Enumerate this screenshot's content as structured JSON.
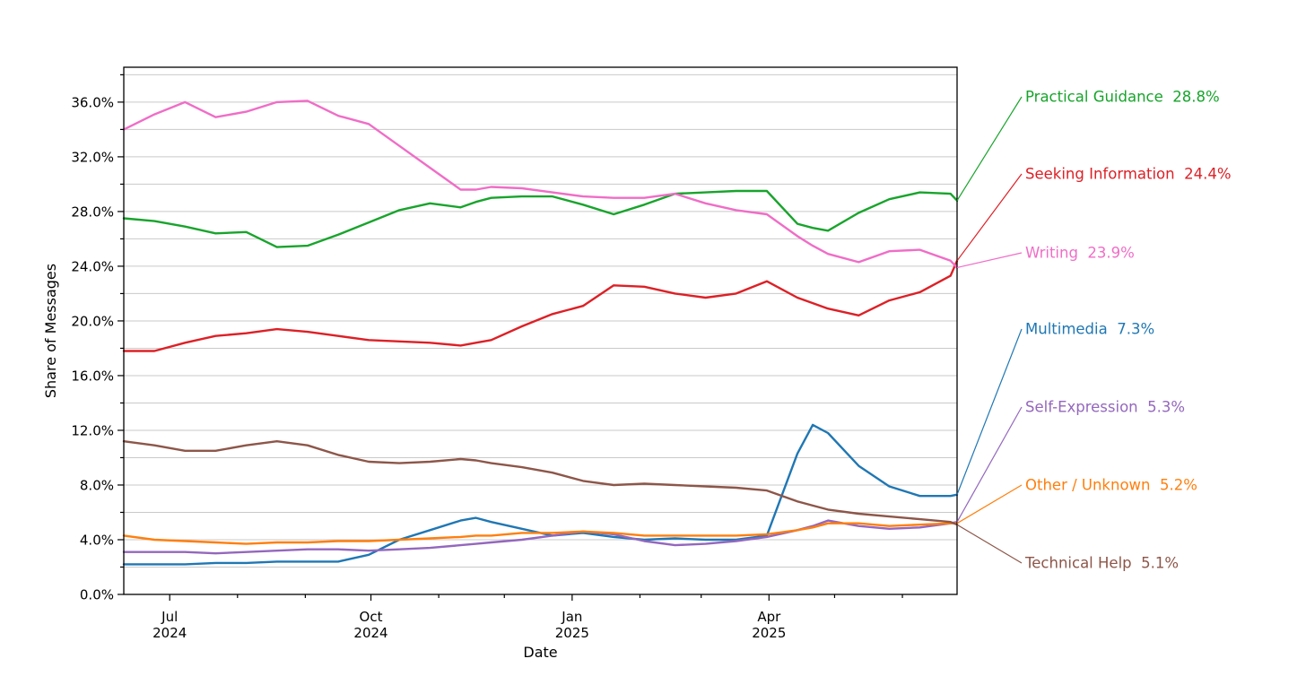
{
  "figure": {
    "background": "#ffffff",
    "plot_border_color": "#000000",
    "grid_color": "#c9c9c9"
  },
  "chart_data": {
    "type": "line",
    "title": "",
    "xlabel": "Date",
    "ylabel": "Share of Messages",
    "legend_position": "right-edge annotations with leader lines",
    "grid": "horizontal, every 2%",
    "ylim": [
      0,
      38.55
    ],
    "y_major_ticks": [
      0,
      4,
      8,
      12,
      16,
      20,
      24,
      28,
      32,
      36
    ],
    "y_major_tick_labels": [
      "0.0%",
      "4.0%",
      "8.0%",
      "12.0%",
      "16.0%",
      "20.0%",
      "24.0%",
      "28.0%",
      "32.0%",
      "36.0%"
    ],
    "y_gridline_step_pct": 2,
    "x_range": [
      "2024-06-10",
      "2025-06-26"
    ],
    "x_major_ticks": [
      {
        "date": "2024-07-01",
        "line1": "Jul",
        "line2": "2024"
      },
      {
        "date": "2024-10-01",
        "line1": "Oct",
        "line2": "2024"
      },
      {
        "date": "2025-01-01",
        "line1": "Jan",
        "line2": "2025"
      },
      {
        "date": "2025-04-01",
        "line1": "Apr",
        "line2": "2025"
      }
    ],
    "x_minor_ticks": [
      "2024-08-01",
      "2024-09-01",
      "2024-11-01",
      "2024-12-01",
      "2025-02-01",
      "2025-03-01",
      "2025-05-01",
      "2025-06-01"
    ],
    "dates": [
      "2024-06-10",
      "2024-06-24",
      "2024-07-08",
      "2024-07-22",
      "2024-08-05",
      "2024-08-19",
      "2024-09-02",
      "2024-09-16",
      "2024-09-30",
      "2024-10-14",
      "2024-10-28",
      "2024-11-11",
      "2024-11-18",
      "2024-11-25",
      "2024-12-09",
      "2024-12-23",
      "2025-01-06",
      "2025-01-20",
      "2025-02-03",
      "2025-02-17",
      "2025-03-03",
      "2025-03-17",
      "2025-03-31",
      "2025-04-14",
      "2025-04-21",
      "2025-04-28",
      "2025-05-12",
      "2025-05-26",
      "2025-06-09",
      "2025-06-23",
      "2025-06-26"
    ],
    "series": [
      {
        "name": "Practical Guidance",
        "final_label": "28.8%",
        "color": "#18a42c",
        "label_y": 108,
        "values": [
          27.5,
          27.3,
          26.9,
          26.4,
          26.5,
          25.4,
          25.5,
          26.3,
          27.2,
          28.1,
          28.6,
          28.3,
          28.7,
          29.0,
          29.1,
          29.1,
          28.5,
          27.8,
          28.5,
          29.3,
          29.4,
          29.5,
          29.5,
          27.1,
          26.8,
          26.6,
          27.9,
          28.9,
          29.4,
          29.3,
          28.8
        ]
      },
      {
        "name": "Seeking Information",
        "final_label": "24.4%",
        "color": "#dd2026",
        "label_y": 194,
        "values": [
          17.8,
          17.8,
          18.4,
          18.9,
          19.1,
          19.4,
          19.2,
          18.9,
          18.6,
          18.5,
          18.4,
          18.2,
          18.4,
          18.6,
          19.6,
          20.5,
          21.1,
          22.6,
          22.5,
          22.0,
          21.7,
          22.0,
          22.9,
          21.7,
          21.3,
          20.9,
          20.4,
          21.5,
          22.1,
          23.3,
          24.4
        ]
      },
      {
        "name": "Writing",
        "final_label": "23.9%",
        "color": "#f06dc7",
        "label_y": 282,
        "values": [
          34.0,
          35.1,
          36.0,
          34.9,
          35.3,
          36.0,
          36.1,
          35.0,
          34.4,
          32.8,
          31.2,
          29.6,
          29.6,
          29.8,
          29.7,
          29.4,
          29.1,
          29.0,
          29.0,
          29.3,
          28.6,
          28.1,
          27.8,
          26.2,
          25.5,
          24.9,
          24.3,
          25.1,
          25.2,
          24.4,
          23.9
        ]
      },
      {
        "name": "Multimedia",
        "final_label": "7.3%",
        "color": "#1f77b4",
        "label_y": 367,
        "values": [
          2.2,
          2.2,
          2.2,
          2.3,
          2.3,
          2.4,
          2.4,
          2.4,
          2.9,
          4.0,
          4.7,
          5.4,
          5.6,
          5.3,
          4.8,
          4.3,
          4.5,
          4.2,
          4.0,
          4.1,
          4.0,
          4.0,
          4.3,
          10.3,
          12.4,
          11.8,
          9.4,
          7.9,
          7.2,
          7.2,
          7.3
        ]
      },
      {
        "name": "Self-Expression",
        "final_label": "5.3%",
        "color": "#9467bd",
        "label_y": 454,
        "values": [
          3.1,
          3.1,
          3.1,
          3.0,
          3.1,
          3.2,
          3.3,
          3.3,
          3.2,
          3.3,
          3.4,
          3.6,
          3.7,
          3.8,
          4.0,
          4.3,
          4.6,
          4.4,
          3.9,
          3.6,
          3.7,
          3.9,
          4.2,
          4.7,
          5.0,
          5.4,
          5.0,
          4.8,
          4.9,
          5.2,
          5.3
        ]
      },
      {
        "name": "Other / Unknown",
        "final_label": "5.2%",
        "color": "#ff7f0e",
        "label_y": 541,
        "values": [
          4.3,
          4.0,
          3.9,
          3.8,
          3.7,
          3.8,
          3.8,
          3.9,
          3.9,
          4.0,
          4.1,
          4.2,
          4.3,
          4.3,
          4.5,
          4.5,
          4.6,
          4.5,
          4.3,
          4.3,
          4.3,
          4.3,
          4.4,
          4.7,
          4.9,
          5.2,
          5.2,
          5.0,
          5.1,
          5.2,
          5.2
        ]
      },
      {
        "name": "Technical Help",
        "final_label": "5.1%",
        "color": "#8d5649",
        "label_y": 628,
        "values": [
          11.2,
          10.9,
          10.5,
          10.5,
          10.9,
          11.2,
          10.9,
          10.2,
          9.7,
          9.6,
          9.7,
          9.9,
          9.8,
          9.6,
          9.3,
          8.9,
          8.3,
          8.0,
          8.1,
          8.0,
          7.9,
          7.8,
          7.6,
          6.8,
          6.5,
          6.2,
          5.9,
          5.7,
          5.5,
          5.3,
          5.1
        ]
      }
    ]
  }
}
